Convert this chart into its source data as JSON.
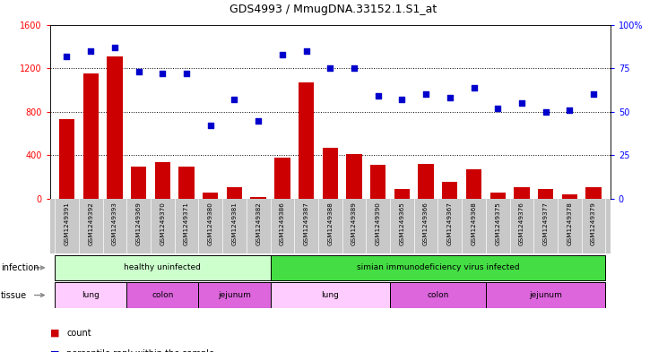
{
  "title": "GDS4993 / MmugDNA.33152.1.S1_at",
  "samples": [
    "GSM1249391",
    "GSM1249392",
    "GSM1249393",
    "GSM1249369",
    "GSM1249370",
    "GSM1249371",
    "GSM1249380",
    "GSM1249381",
    "GSM1249382",
    "GSM1249386",
    "GSM1249387",
    "GSM1249388",
    "GSM1249389",
    "GSM1249390",
    "GSM1249365",
    "GSM1249366",
    "GSM1249367",
    "GSM1249368",
    "GSM1249375",
    "GSM1249376",
    "GSM1249377",
    "GSM1249378",
    "GSM1249379"
  ],
  "counts": [
    730,
    1150,
    1310,
    300,
    340,
    300,
    60,
    110,
    20,
    380,
    1070,
    470,
    410,
    310,
    90,
    320,
    155,
    270,
    60,
    110,
    90,
    45,
    110
  ],
  "percentiles": [
    82,
    85,
    87,
    73,
    72,
    72,
    42,
    57,
    45,
    83,
    85,
    75,
    75,
    59,
    57,
    60,
    58,
    64,
    52,
    55,
    50,
    51,
    60
  ],
  "ylim_left": [
    0,
    1600
  ],
  "ylim_right": [
    0,
    100
  ],
  "yticks_left": [
    0,
    400,
    800,
    1200,
    1600
  ],
  "yticks_right": [
    0,
    25,
    50,
    75,
    100
  ],
  "bar_color": "#cc0000",
  "scatter_color": "#0000cc",
  "grid_lines": [
    400,
    800,
    1200
  ],
  "infection_groups": [
    {
      "label": "healthy uninfected",
      "start": 0,
      "end": 9,
      "color": "#ccffcc"
    },
    {
      "label": "simian immunodeficiency virus infected",
      "start": 9,
      "end": 23,
      "color": "#44dd44"
    }
  ],
  "tissue_groups": [
    {
      "label": "lung",
      "start": 0,
      "end": 3,
      "color": "#ffccff"
    },
    {
      "label": "colon",
      "start": 3,
      "end": 6,
      "color": "#dd66dd"
    },
    {
      "label": "jejunum",
      "start": 6,
      "end": 9,
      "color": "#dd66dd"
    },
    {
      "label": "lung",
      "start": 9,
      "end": 14,
      "color": "#ffccff"
    },
    {
      "label": "colon",
      "start": 14,
      "end": 18,
      "color": "#dd66dd"
    },
    {
      "label": "jejunum",
      "start": 18,
      "end": 23,
      "color": "#dd66dd"
    }
  ],
  "tick_label_bg": "#c8c8c8",
  "legend_count_color": "#cc0000",
  "legend_percentile_color": "#0000cc",
  "left_label_color": "#888888"
}
